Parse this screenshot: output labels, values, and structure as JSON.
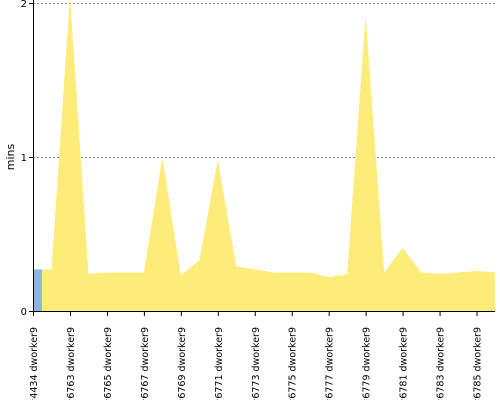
{
  "chart_data": {
    "type": "area",
    "ylabel": "mins",
    "ylim": [
      0,
      2
    ],
    "yticks": [
      0,
      1,
      2
    ],
    "grid": true,
    "series": [
      {
        "color": "#fdeb7a",
        "highlight_color": "#8eb4e0",
        "highlight_index": 0,
        "values": [
          0.27,
          0.27,
          2.05,
          0.24,
          0.25,
          0.25,
          0.25,
          1.0,
          0.23,
          0.33,
          0.98,
          0.29,
          0.27,
          0.25,
          0.25,
          0.25,
          0.22,
          0.24,
          1.92,
          0.25,
          0.41,
          0.25,
          0.24,
          0.25,
          0.26,
          0.25
        ]
      }
    ],
    "x": [
      0,
      1,
      2,
      3,
      4,
      5,
      6,
      7,
      8,
      9,
      10,
      11,
      12,
      13,
      14,
      15,
      16,
      17,
      18,
      19,
      20,
      21,
      22,
      23,
      24,
      25
    ],
    "tick_labels": [
      {
        "index": 0,
        "label": "#4434 dworker9"
      },
      {
        "index": 2,
        "label": "#6763 dworker9"
      },
      {
        "index": 4,
        "label": "#6765 dworker9"
      },
      {
        "index": 6,
        "label": "#6767 dworker9"
      },
      {
        "index": 8,
        "label": "#6769 dworker9"
      },
      {
        "index": 10,
        "label": "#6771 dworker9"
      },
      {
        "index": 12,
        "label": "#6773 dworker9"
      },
      {
        "index": 14,
        "label": "#6775 dworker9"
      },
      {
        "index": 16,
        "label": "#6777 dworker9"
      },
      {
        "index": 18,
        "label": "#6779 dworker9"
      },
      {
        "index": 20,
        "label": "#6781 dworker9"
      },
      {
        "index": 22,
        "label": "#6783 dworker9"
      },
      {
        "index": 24,
        "label": "#6785 dworker9"
      }
    ]
  }
}
